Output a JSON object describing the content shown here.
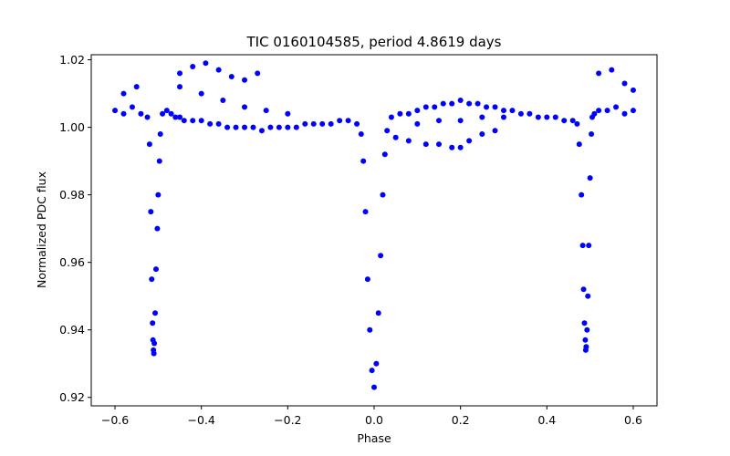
{
  "chart_data": {
    "type": "scatter",
    "title": "TIC 0160104585, period 4.8619 days",
    "xlabel": "Phase",
    "ylabel": "Normalized PDC flux",
    "xlim": [
      -0.655,
      0.655
    ],
    "ylim": [
      0.9175,
      1.0215
    ],
    "xticks": [
      -0.6,
      -0.4,
      -0.2,
      0.0,
      0.2,
      0.4,
      0.6
    ],
    "xtick_labels": [
      "−0.6",
      "−0.4",
      "−0.2",
      "0.0",
      "0.2",
      "0.4",
      "0.6"
    ],
    "yticks": [
      0.92,
      0.94,
      0.96,
      0.98,
      1.0,
      1.02
    ],
    "ytick_labels": [
      "0.92",
      "0.94",
      "0.96",
      "0.98",
      "1.00",
      "1.02"
    ],
    "grid": false,
    "series": [
      {
        "color": "#0000ff",
        "marker": "circle",
        "x": [
          -0.6,
          -0.58,
          -0.56,
          -0.54,
          -0.525,
          -0.52,
          -0.517,
          -0.515,
          -0.513,
          -0.512,
          -0.511,
          -0.51,
          -0.509,
          -0.507,
          -0.505,
          -0.502,
          -0.5,
          -0.497,
          -0.495,
          -0.49,
          -0.48,
          -0.47,
          -0.46,
          -0.45,
          -0.44,
          -0.42,
          -0.4,
          -0.38,
          -0.36,
          -0.34,
          -0.32,
          -0.3,
          -0.28,
          -0.26,
          -0.24,
          -0.22,
          -0.2,
          -0.18,
          -0.16,
          -0.14,
          -0.12,
          -0.1,
          -0.08,
          -0.06,
          -0.04,
          -0.03,
          -0.025,
          -0.02,
          -0.015,
          -0.01,
          -0.005,
          0.0,
          0.005,
          0.01,
          0.015,
          0.02,
          0.025,
          0.03,
          0.04,
          0.06,
          0.08,
          0.1,
          0.12,
          0.14,
          0.16,
          0.18,
          0.2,
          0.22,
          0.24,
          0.26,
          0.28,
          0.3,
          0.32,
          0.34,
          0.36,
          0.38,
          0.4,
          0.42,
          0.44,
          0.46,
          0.47,
          0.475,
          0.48,
          0.483,
          0.485,
          0.487,
          0.489,
          0.49,
          0.491,
          0.493,
          0.495,
          0.497,
          0.5,
          0.503,
          0.505,
          0.51,
          0.52,
          0.54,
          0.56,
          0.58,
          0.6,
          -0.58,
          -0.55,
          -0.45,
          -0.42,
          -0.39,
          -0.36,
          -0.33,
          -0.3,
          -0.27,
          -0.45,
          -0.4,
          -0.35,
          -0.3,
          -0.25,
          -0.2,
          0.05,
          0.08,
          0.12,
          0.15,
          0.18,
          0.2,
          0.22,
          0.25,
          0.28,
          0.1,
          0.15,
          0.2,
          0.25,
          0.3,
          0.52,
          0.55,
          0.58,
          0.6
        ],
        "y": [
          1.005,
          1.004,
          1.006,
          1.004,
          1.003,
          0.995,
          0.975,
          0.955,
          0.942,
          0.937,
          0.934,
          0.933,
          0.936,
          0.945,
          0.958,
          0.97,
          0.98,
          0.99,
          0.998,
          1.004,
          1.005,
          1.004,
          1.003,
          1.003,
          1.002,
          1.002,
          1.002,
          1.001,
          1.001,
          1.0,
          1.0,
          1.0,
          1.0,
          0.999,
          1.0,
          1.0,
          1.0,
          1.0,
          1.001,
          1.001,
          1.001,
          1.001,
          1.002,
          1.002,
          1.001,
          0.998,
          0.99,
          0.975,
          0.955,
          0.94,
          0.928,
          0.923,
          0.93,
          0.945,
          0.962,
          0.98,
          0.992,
          0.999,
          1.003,
          1.004,
          1.004,
          1.005,
          1.006,
          1.006,
          1.007,
          1.007,
          1.008,
          1.007,
          1.007,
          1.006,
          1.006,
          1.005,
          1.005,
          1.004,
          1.004,
          1.003,
          1.003,
          1.003,
          1.002,
          1.002,
          1.001,
          0.995,
          0.98,
          0.965,
          0.952,
          0.942,
          0.937,
          0.934,
          0.935,
          0.94,
          0.95,
          0.965,
          0.985,
          0.998,
          1.003,
          1.004,
          1.005,
          1.005,
          1.006,
          1.004,
          1.005,
          1.01,
          1.012,
          1.016,
          1.018,
          1.019,
          1.017,
          1.015,
          1.014,
          1.016,
          1.012,
          1.01,
          1.008,
          1.006,
          1.005,
          1.004,
          0.997,
          0.996,
          0.995,
          0.995,
          0.994,
          0.994,
          0.996,
          0.998,
          0.999,
          1.001,
          1.002,
          1.002,
          1.003,
          1.003,
          1.016,
          1.017,
          1.013,
          1.011
        ]
      }
    ]
  }
}
